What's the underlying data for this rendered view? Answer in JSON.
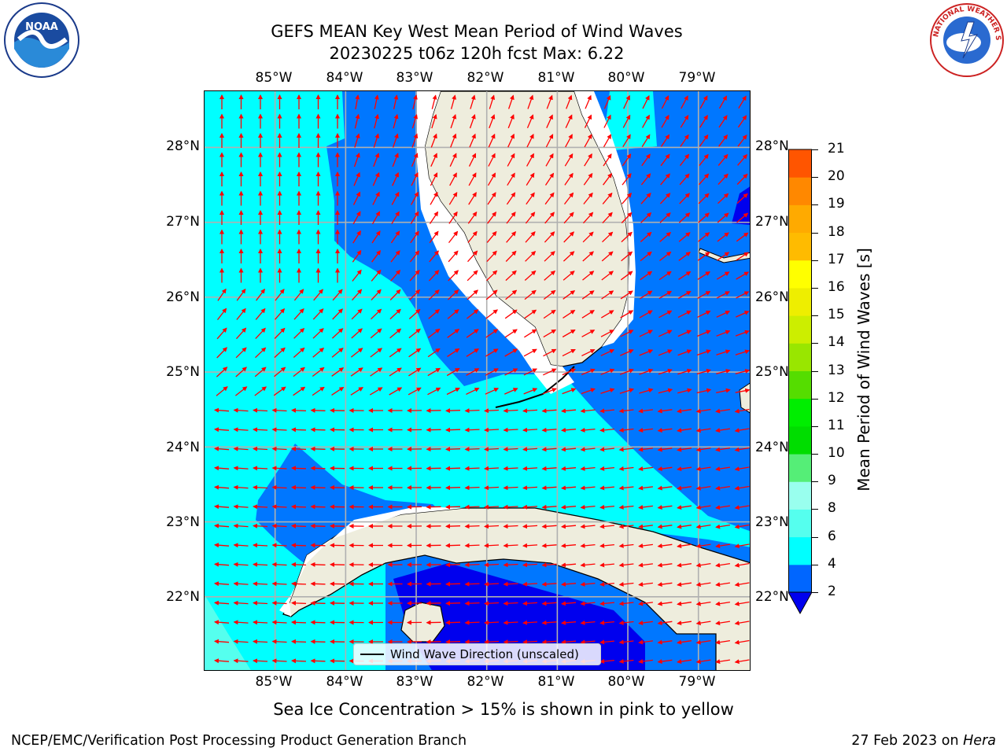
{
  "title": {
    "line1": "GEFS MEAN Key West Mean Period of Wind Waves",
    "line2": "20230225 t06z 120h fcst   Max: 6.22"
  },
  "map": {
    "lon_labels": [
      "85°W",
      "84°W",
      "83°W",
      "82°W",
      "81°W",
      "80°W",
      "79°W"
    ],
    "lat_labels": [
      "28°N",
      "27°N",
      "26°N",
      "25°N",
      "24°N",
      "23°N",
      "22°N"
    ],
    "extent": {
      "lon": [
        -86.0,
        -78.25
      ],
      "lat": [
        21.0,
        28.75
      ]
    },
    "gridlines": true,
    "field": "Mean Period of Wind Waves",
    "field_max": 6.22,
    "arrow_color": "#ff0000",
    "land_color": "#eeeddd",
    "missing_color": "#ffffff",
    "legend": {
      "label": "Wind Wave Direction (unscaled)"
    }
  },
  "colorbar": {
    "label": "Mean Period of Wind Waves [s]",
    "ticks": [
      "2",
      "4",
      "6",
      "8",
      "9",
      "10",
      "11",
      "12",
      "13",
      "14",
      "15",
      "16",
      "17",
      "18",
      "19",
      "20",
      "21"
    ],
    "levels": [
      2,
      4,
      6,
      8,
      9,
      10,
      11,
      12,
      13,
      14,
      15,
      16,
      17,
      18,
      19,
      20,
      21
    ],
    "colors": [
      "#0066ff",
      "#00ffff",
      "#55ffee",
      "#99ffee",
      "#55ee77",
      "#00dd00",
      "#00ee00",
      "#55dd00",
      "#99e600",
      "#ccee00",
      "#eeee00",
      "#ffff00",
      "#ffbb00",
      "#ffaa00",
      "#ff8800",
      "#ff5500",
      "#ff2200",
      "#ff0000"
    ],
    "under_color": "#0000ee"
  },
  "ice_note": "Sea Ice Concentration > 15% is shown in pink to yellow",
  "footer": {
    "left": "NCEP/EMC/Verification Post Processing Product Generation Branch",
    "right_date": "27 Feb 2023 on",
    "right_machine": "Hera"
  },
  "logos": {
    "noaa": {
      "text": "NOAA",
      "icon": "noaa-logo"
    },
    "nws": {
      "text": "NATIONAL WEATHER SERVICE",
      "icon": "nws-logo"
    }
  }
}
